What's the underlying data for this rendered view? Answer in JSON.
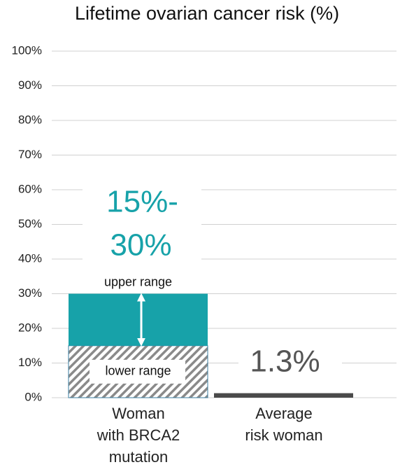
{
  "title": "Lifetime ovarian cancer risk (%)",
  "colors": {
    "teal": "#17a2a9",
    "hatch": "#8a8a8a",
    "dark_bar": "#4a4a4a",
    "gridline": "#d0d0d0",
    "arrow": "#ffffff"
  },
  "chart_data": {
    "type": "bar",
    "title": "Lifetime ovarian cancer risk (%)",
    "categories": [
      "Woman with BRCA2 mutation",
      "Average risk woman"
    ],
    "ylim": [
      0,
      100
    ],
    "yticks": [
      0,
      10,
      20,
      30,
      40,
      50,
      60,
      70,
      80,
      90,
      100
    ],
    "ytick_labels": [
      "0%",
      "10%",
      "20%",
      "30%",
      "40%",
      "50%",
      "60%",
      "70%",
      "80%",
      "90%",
      "100%"
    ],
    "grid": true,
    "brca2_range": {
      "lower_value": 15,
      "upper_value": 30,
      "lower_label": "lower range",
      "upper_label": "upper range",
      "range_text_line1": "15%-",
      "range_text_line2": "30%"
    },
    "average": {
      "value": 1.3,
      "label": "1.3%"
    }
  },
  "category_labels": {
    "brca2_line1": "Woman",
    "brca2_line2": "with BRCA2",
    "brca2_line3": "mutation",
    "average_line1": "Average",
    "average_line2": "risk woman"
  }
}
